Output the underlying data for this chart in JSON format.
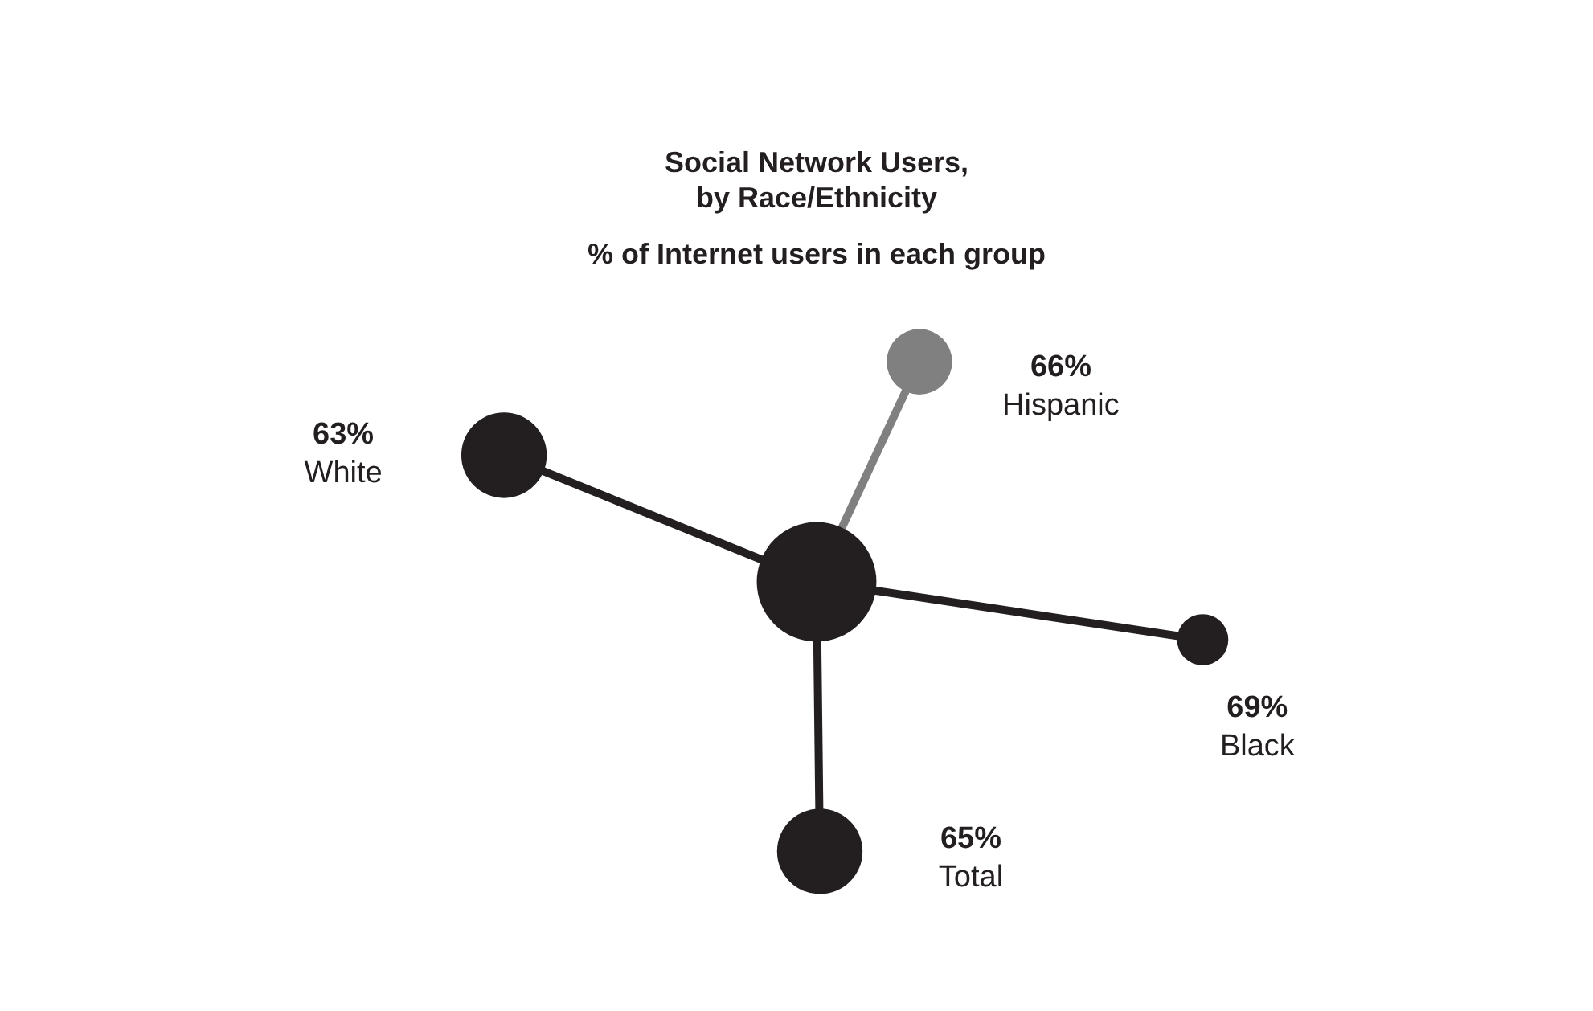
{
  "chart_data": {
    "type": "other",
    "title": "Social Network Users,\nby Race/Ethnicity",
    "subtitle": "% of Internet users in each group",
    "categories": [
      "White",
      "Hispanic",
      "Black",
      "Total"
    ],
    "values": [
      63,
      66,
      69,
      65
    ],
    "value_labels": [
      "63%",
      "66%",
      "69%",
      "65%"
    ],
    "colors": [
      "#231f20",
      "#808080",
      "#231f20",
      "#231f20"
    ]
  }
}
